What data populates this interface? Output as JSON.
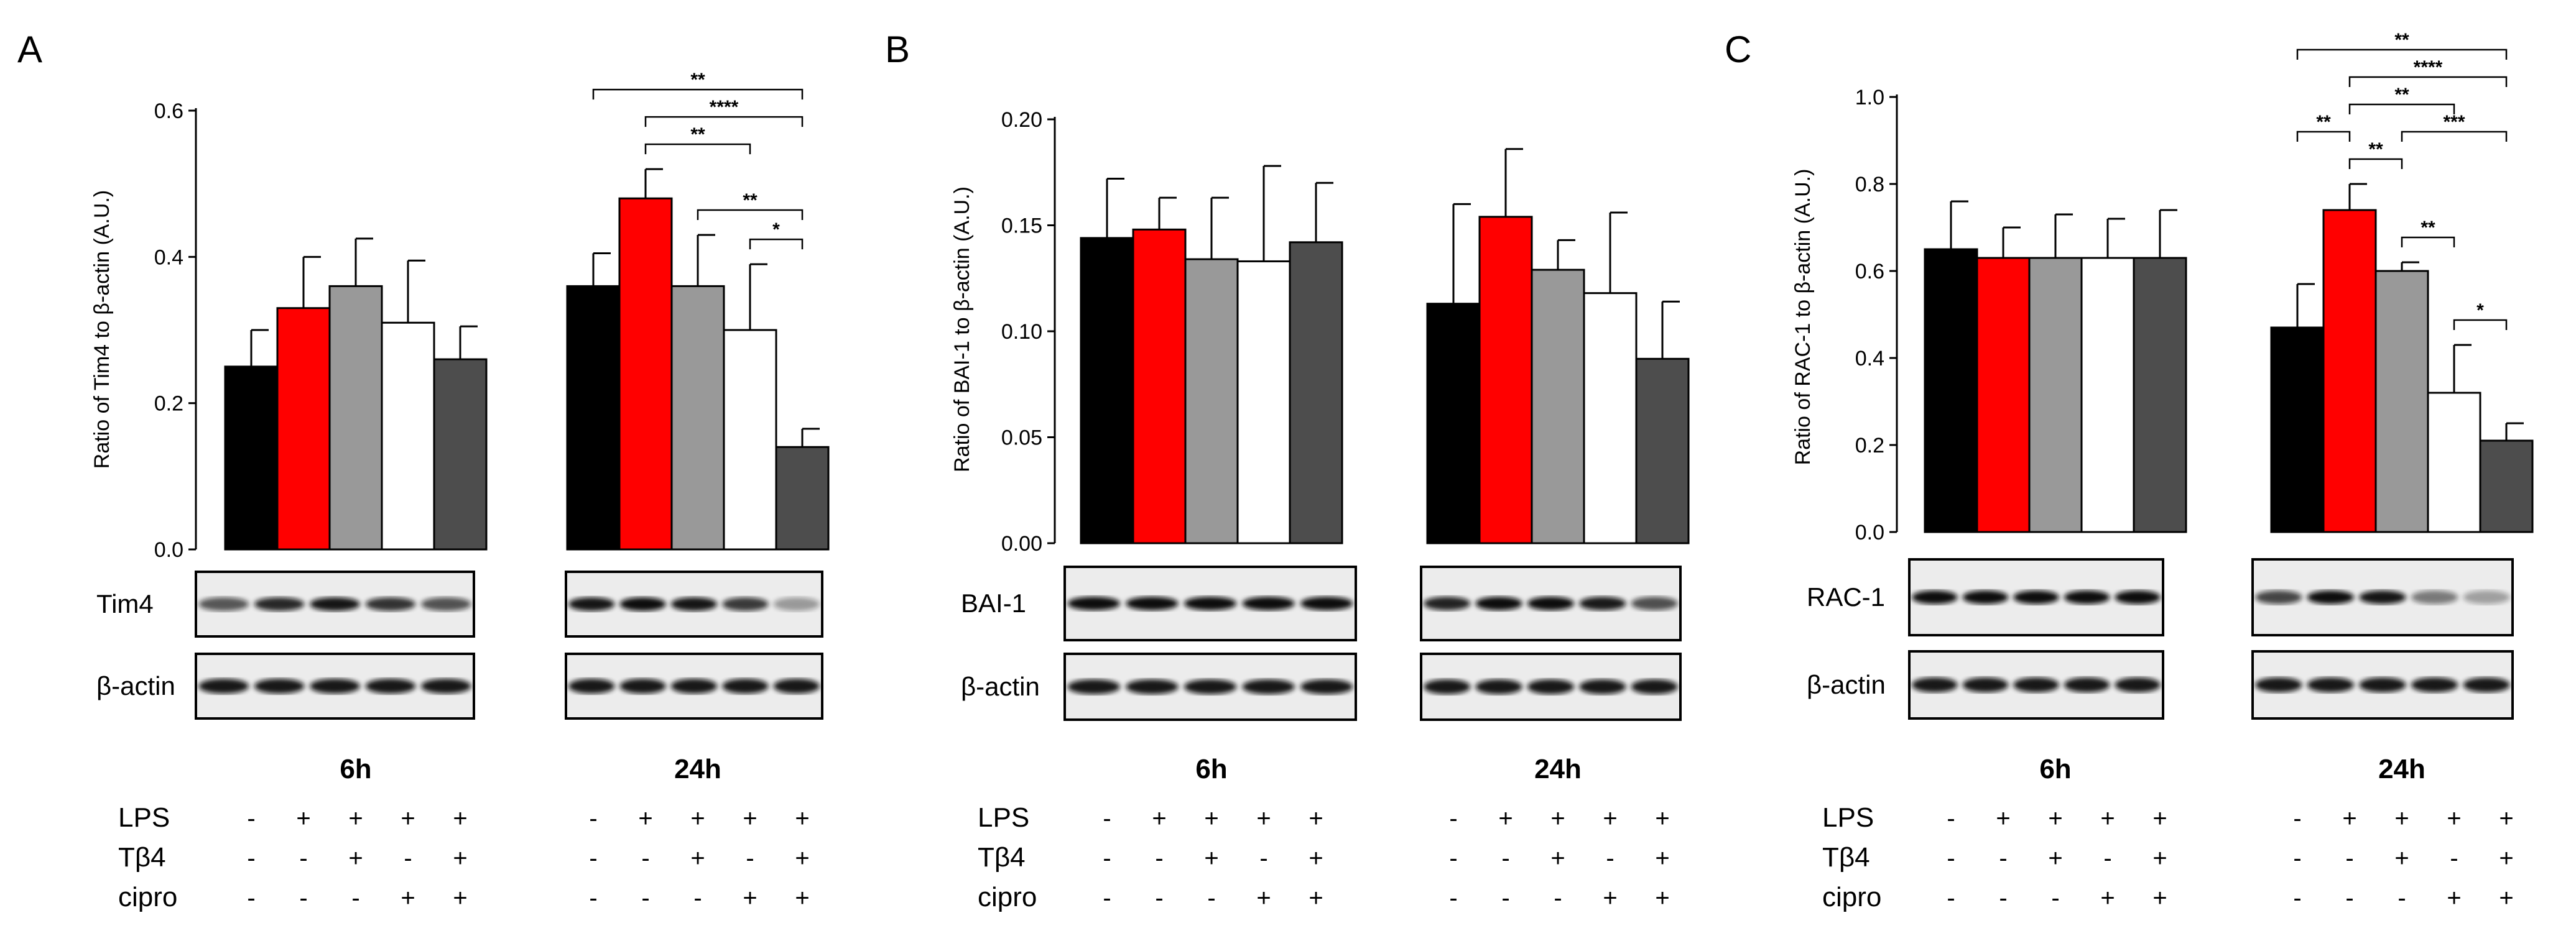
{
  "colors": {
    "ctrl": "#000000",
    "lps": "#ff0000",
    "lps_tb4": "#999999",
    "lps_cipro": "#ffffff",
    "lps_tb4_cipro": "#4d4d4d"
  },
  "conditions": {
    "time_labels": [
      "6h",
      "24h"
    ],
    "rows": [
      {
        "label": "LPS",
        "signs": [
          "-",
          "+",
          "+",
          "+",
          "+"
        ]
      },
      {
        "label": "Tβ4",
        "signs": [
          "-",
          "-",
          "+",
          "-",
          "+"
        ]
      },
      {
        "label": "cipro",
        "signs": [
          "-",
          "-",
          "-",
          "+",
          "+"
        ]
      }
    ]
  },
  "chart_data": [
    {
      "panel_label": "A",
      "type": "bar",
      "ylabel": "Ratio of Tim4 to β-actin (A.U.)",
      "ylim": [
        0,
        0.6
      ],
      "yticks": [
        "0.0",
        "0.2",
        "0.4",
        "0.6"
      ],
      "ytick_values": [
        0,
        0.2,
        0.4,
        0.6
      ],
      "groups": [
        "6h",
        "24h"
      ],
      "values": [
        [
          0.25,
          0.33,
          0.36,
          0.31,
          0.26
        ],
        [
          0.36,
          0.48,
          0.36,
          0.3,
          0.14
        ]
      ],
      "errors": [
        [
          0.05,
          0.07,
          0.065,
          0.085,
          0.045
        ],
        [
          0.045,
          0.04,
          0.07,
          0.09,
          0.025
        ]
      ],
      "significance": [
        {
          "group": 1,
          "from": 0,
          "to": 4,
          "label": "**"
        },
        {
          "group": 1,
          "from": 1,
          "to": 4,
          "label": "****"
        },
        {
          "group": 1,
          "from": 1,
          "to": 3,
          "label": "**"
        },
        {
          "group": 1,
          "from": 2,
          "to": 4,
          "label": "**"
        },
        {
          "group": 1,
          "from": 3,
          "to": 4,
          "label": "*"
        }
      ],
      "blots": [
        "Tim4",
        "β-actin"
      ]
    },
    {
      "panel_label": "B",
      "type": "bar",
      "ylabel": "Ratio of BAI-1 to β-actin (A.U.)",
      "ylim": [
        0,
        0.2
      ],
      "yticks": [
        "0.00",
        "0.05",
        "0.10",
        "0.15",
        "0.20"
      ],
      "ytick_values": [
        0,
        0.05,
        0.1,
        0.15,
        0.2
      ],
      "groups": [
        "6h",
        "24h"
      ],
      "values": [
        [
          0.144,
          0.148,
          0.134,
          0.133,
          0.142
        ],
        [
          0.113,
          0.154,
          0.129,
          0.118,
          0.087
        ]
      ],
      "errors": [
        [
          0.028,
          0.015,
          0.029,
          0.045,
          0.028
        ],
        [
          0.047,
          0.032,
          0.014,
          0.038,
          0.027
        ]
      ],
      "significance": [],
      "blots": [
        "BAI-1",
        "β-actin"
      ]
    },
    {
      "panel_label": "C",
      "type": "bar",
      "ylabel": "Ratio of RAC-1 to β-actin (A.U.)",
      "ylim": [
        0,
        1.0
      ],
      "yticks": [
        "0.0",
        "0.2",
        "0.4",
        "0.6",
        "0.8",
        "1.0"
      ],
      "ytick_values": [
        0,
        0.2,
        0.4,
        0.6,
        0.8,
        1.0
      ],
      "groups": [
        "6h",
        "24h"
      ],
      "values": [
        [
          0.65,
          0.63,
          0.63,
          0.63,
          0.63
        ],
        [
          0.47,
          0.74,
          0.6,
          0.32,
          0.21
        ]
      ],
      "errors": [
        [
          0.11,
          0.07,
          0.1,
          0.09,
          0.11
        ],
        [
          0.1,
          0.06,
          0.02,
          0.11,
          0.04
        ]
      ],
      "significance": [
        {
          "group": 1,
          "from": 0,
          "to": 4,
          "label": "**"
        },
        {
          "group": 1,
          "from": 1,
          "to": 4,
          "label": "****"
        },
        {
          "group": 1,
          "from": 1,
          "to": 3,
          "label": "**"
        },
        {
          "group": 1,
          "from": 1,
          "to": 2,
          "label": "**"
        },
        {
          "group": 1,
          "from": 0,
          "to": 1,
          "label": "**"
        },
        {
          "group": 1,
          "from": 2,
          "to": 4,
          "label": "***"
        },
        {
          "group": 1,
          "from": 2,
          "to": 3,
          "label": "**"
        },
        {
          "group": 1,
          "from": 3,
          "to": 4,
          "label": "*"
        }
      ],
      "blots": [
        "RAC-1",
        "β-actin"
      ]
    }
  ]
}
